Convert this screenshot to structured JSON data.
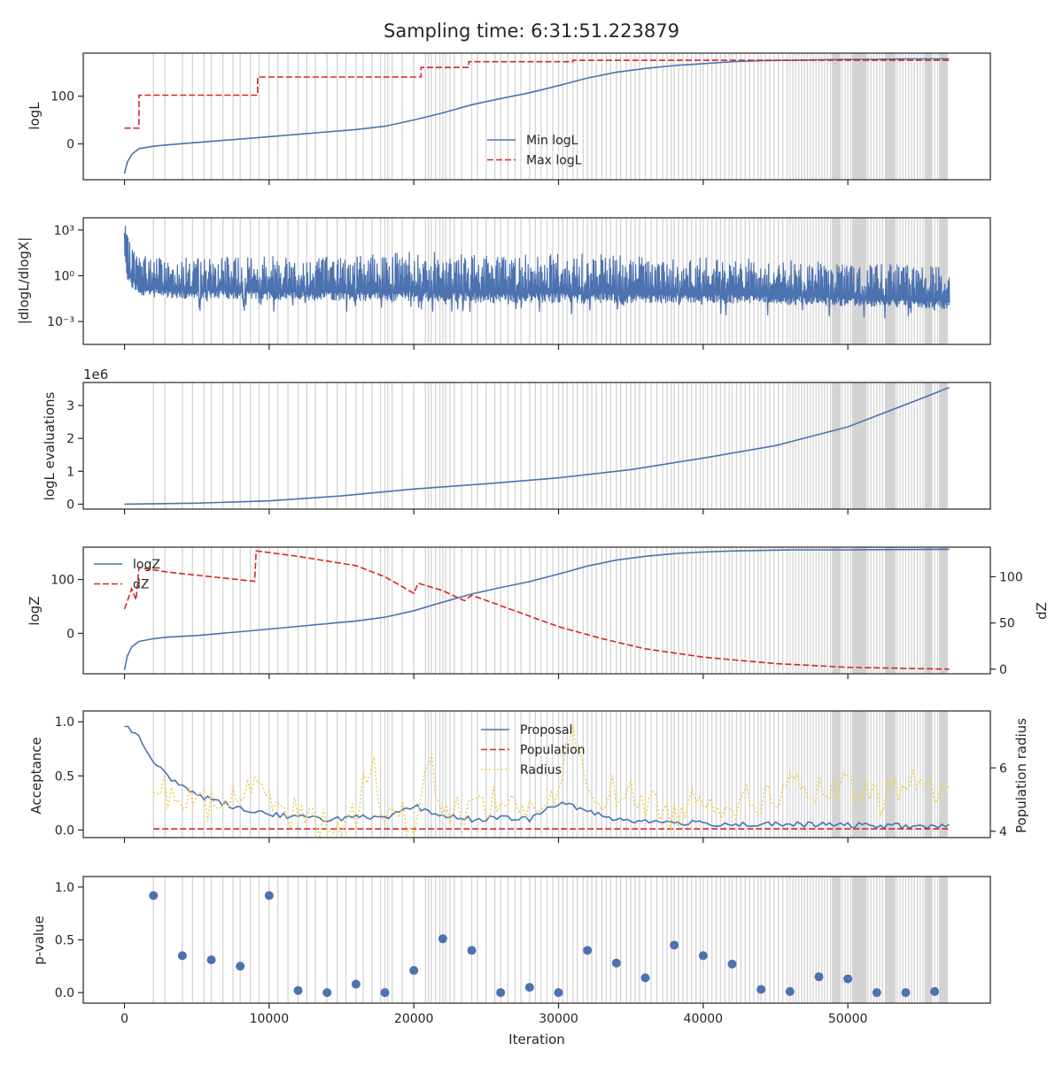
{
  "figure": {
    "title": "Sampling time: 6:31:51.223879",
    "xlabel": "Iteration",
    "xlim": [
      -2850,
      59850
    ],
    "xticks": [
      0,
      10000,
      20000,
      30000,
      40000,
      50000
    ],
    "xtick_labels": [
      "0",
      "10000",
      "20000",
      "30000",
      "40000",
      "50000"
    ]
  },
  "colors": {
    "blue": "#4c72b0",
    "red": "#d62728",
    "yellow": "#f0d050",
    "band": "#d3d3d3",
    "axis": "#262626"
  },
  "chart_data": [
    {
      "type": "line",
      "ylabel": "logL",
      "ylim": [
        -75,
        190
      ],
      "yticks": [
        0,
        100
      ],
      "ytick_labels": [
        "0",
        "100"
      ],
      "legend": "center",
      "series": [
        {
          "name": "Min logL",
          "style": "solid",
          "color": "blue",
          "x": [
            0,
            200,
            500,
            1000,
            2000,
            3000,
            5000,
            8000,
            10000,
            12000,
            14000,
            16000,
            18000,
            20000,
            22000,
            24000,
            26000,
            28000,
            30000,
            32000,
            34000,
            36000,
            38000,
            40000,
            42000,
            44000,
            46000,
            48000,
            50000,
            52000,
            54000,
            57000
          ],
          "y": [
            -62,
            -38,
            -22,
            -10,
            -5,
            -2,
            3,
            10,
            15,
            20,
            25,
            30,
            37,
            50,
            65,
            82,
            95,
            107,
            122,
            138,
            150,
            158,
            164,
            168,
            172,
            174,
            175,
            176,
            177,
            177,
            178,
            178
          ]
        },
        {
          "name": "Max logL",
          "style": "dashed",
          "color": "red",
          "step": true,
          "x": [
            0,
            800,
            1000,
            9000,
            9200,
            20000,
            20500,
            23500,
            23800,
            31000,
            57000
          ],
          "y": [
            33,
            33,
            102,
            102,
            140,
            140,
            160,
            160,
            172,
            175,
            178
          ]
        }
      ]
    },
    {
      "type": "line",
      "ylabel": "|dlogL/dlogX|",
      "yscale": "log",
      "ylim_log10": [
        -4.5,
        3.8
      ],
      "yticks_log10": [
        -3,
        0,
        3
      ],
      "ytick_labels": [
        "10⁻³",
        "10⁰",
        "10³"
      ],
      "series": [
        {
          "name": "",
          "style": "noisy",
          "color": "blue",
          "x": [
            0,
            200,
            1000,
            3000,
            10000,
            17000,
            20000,
            25000,
            30000,
            40000,
            50000,
            57000
          ],
          "upper_log10": [
            3.6,
            2.6,
            1.5,
            1.2,
            1.3,
            1.4,
            1.6,
            1.4,
            1.5,
            1.2,
            0.9,
            0.6
          ],
          "lower_log10": [
            1.0,
            -0.5,
            -1.3,
            -1.5,
            -1.6,
            -1.7,
            -1.7,
            -1.8,
            -1.8,
            -1.8,
            -2.0,
            -2.2
          ]
        }
      ]
    },
    {
      "type": "line",
      "ylabel": "logL evaluations",
      "offset_label": "1e6",
      "ylim": [
        -0.15,
        3.7
      ],
      "yticks": [
        0,
        1,
        2,
        3
      ],
      "ytick_labels": [
        "0",
        "1",
        "2",
        "3"
      ],
      "series": [
        {
          "name": "",
          "style": "solid",
          "color": "blue",
          "x": [
            0,
            5000,
            10000,
            15000,
            20000,
            25000,
            30000,
            35000,
            40000,
            45000,
            50000,
            55000,
            57000
          ],
          "y": [
            0.0,
            0.03,
            0.1,
            0.25,
            0.46,
            0.62,
            0.8,
            1.05,
            1.4,
            1.78,
            2.35,
            3.2,
            3.55
          ]
        }
      ]
    },
    {
      "type": "line",
      "ylabel": "logZ",
      "ylim": [
        -75,
        160
      ],
      "yticks": [
        0,
        100
      ],
      "ytick_labels": [
        "0",
        "100"
      ],
      "ylabel_right": "dZ",
      "ylim_right": [
        -5,
        132
      ],
      "yticks_right": [
        0,
        50,
        100
      ],
      "ytick_labels_right": [
        "0",
        "50",
        "100"
      ],
      "legend": "upper left",
      "series": [
        {
          "name": "logZ",
          "style": "solid",
          "color": "blue",
          "axis": "left",
          "x": [
            0,
            200,
            500,
            1000,
            2000,
            3000,
            5000,
            8000,
            10000,
            12000,
            14000,
            16000,
            18000,
            20000,
            22000,
            24000,
            26000,
            28000,
            30000,
            32000,
            34000,
            36000,
            38000,
            40000,
            42000,
            44000,
            46000,
            50000,
            57000
          ],
          "y": [
            -68,
            -42,
            -25,
            -15,
            -10,
            -7,
            -4,
            3,
            8,
            13,
            18,
            23,
            30,
            42,
            58,
            73,
            85,
            96,
            110,
            125,
            136,
            143,
            148,
            151,
            153,
            154,
            155,
            155,
            156
          ]
        },
        {
          "name": "dZ",
          "style": "dashed",
          "color": "red",
          "axis": "right",
          "x": [
            0,
            500,
            800,
            1000,
            3000,
            6000,
            9000,
            9100,
            12000,
            16000,
            18000,
            20000,
            20300,
            22000,
            23500,
            24000,
            27000,
            30000,
            33000,
            36000,
            40000,
            45000,
            50000,
            57000
          ],
          "y": [
            65,
            87,
            75,
            110,
            105,
            100,
            95,
            128,
            122,
            112,
            100,
            82,
            93,
            85,
            74,
            80,
            63,
            46,
            33,
            22,
            13,
            6,
            2,
            0
          ]
        }
      ]
    },
    {
      "type": "line",
      "ylabel": "Acceptance",
      "ylim": [
        -0.07,
        1.1
      ],
      "yticks": [
        0.0,
        0.5,
        1.0
      ],
      "ytick_labels": [
        "0.0",
        "0.5",
        "1.0"
      ],
      "ylabel_right": "Population radius",
      "ylim_right": [
        3.8,
        7.8
      ],
      "yticks_right": [
        4,
        6
      ],
      "ytick_labels_right": [
        "4",
        "6"
      ],
      "legend": "center top",
      "series": [
        {
          "name": "Proposal",
          "style": "solid",
          "color": "blue",
          "axis": "left",
          "x": [
            0,
            1000,
            2000,
            3000,
            4000,
            5000,
            6000,
            8000,
            10000,
            12000,
            14000,
            16000,
            18000,
            20000,
            22000,
            24000,
            26000,
            28000,
            30000,
            32000,
            34000,
            36000,
            38000,
            40000,
            44000,
            48000,
            52000,
            57000
          ],
          "y": [
            0.98,
            0.85,
            0.62,
            0.5,
            0.4,
            0.33,
            0.28,
            0.2,
            0.15,
            0.12,
            0.1,
            0.12,
            0.1,
            0.22,
            0.13,
            0.1,
            0.11,
            0.1,
            0.25,
            0.18,
            0.1,
            0.08,
            0.07,
            0.06,
            0.05,
            0.05,
            0.04,
            0.03
          ]
        },
        {
          "name": "Population",
          "style": "dashed",
          "color": "red",
          "axis": "left",
          "x": [
            2000,
            57000
          ],
          "y": [
            0.01,
            0.01
          ]
        },
        {
          "name": "Radius",
          "style": "dotted",
          "color": "yellow",
          "axis": "right",
          "x": [
            2000,
            4000,
            6000,
            8000,
            10000,
            12000,
            14000,
            16000,
            17000,
            18000,
            20000,
            21000,
            22000,
            24000,
            26000,
            28000,
            30000,
            31000,
            32000,
            34000,
            36000,
            38000,
            40000,
            42000,
            44000,
            46000,
            48000,
            50000,
            52000,
            54000,
            56000,
            57000
          ],
          "y": [
            5.5,
            5.0,
            4.8,
            5.2,
            5.3,
            4.5,
            4.2,
            4.5,
            6.3,
            4.6,
            4.3,
            6.4,
            4.5,
            4.8,
            5.0,
            4.7,
            5.0,
            7.5,
            5.0,
            5.3,
            4.9,
            4.5,
            5.2,
            4.8,
            5.0,
            5.4,
            5.2,
            5.3,
            5.0,
            5.5,
            5.4,
            5.3
          ]
        }
      ]
    },
    {
      "type": "scatter",
      "ylabel": "p-value",
      "ylim": [
        -0.1,
        1.1
      ],
      "yticks": [
        0.0,
        0.5,
        1.0
      ],
      "ytick_labels": [
        "0.0",
        "0.5",
        "1.0"
      ],
      "series": [
        {
          "name": "",
          "color": "blue",
          "x": [
            2000,
            4000,
            6000,
            8000,
            10000,
            12000,
            14000,
            16000,
            18000,
            20000,
            22000,
            24000,
            26000,
            28000,
            30000,
            32000,
            34000,
            36000,
            38000,
            40000,
            42000,
            44000,
            46000,
            48000,
            50000,
            52000,
            54000,
            56000
          ],
          "y": [
            0.92,
            0.35,
            0.31,
            0.25,
            0.92,
            0.02,
            0.0,
            0.08,
            0.0,
            0.21,
            0.51,
            0.4,
            0.0,
            0.05,
            0.0,
            0.4,
            0.28,
            0.14,
            0.45,
            0.35,
            0.27,
            0.03,
            0.01,
            0.15,
            0.13,
            0.0,
            0.0,
            0.01
          ]
        }
      ]
    }
  ],
  "vbands": {
    "x": [
      2000,
      2800,
      4000,
      4700,
      5500,
      6000,
      6800,
      7500,
      8000,
      8700,
      9300,
      10000,
      10600,
      11300,
      12000,
      12600,
      13200,
      14000,
      14700,
      15300,
      16000,
      16500,
      17100,
      17700,
      18000,
      18200,
      18500,
      19200,
      20000,
      20800,
      21000,
      21200,
      21500,
      21800,
      22000,
      22200,
      22500,
      22800,
      23300,
      24000,
      24400,
      25000,
      25600,
      26000,
      26500,
      27000,
      27400,
      28000,
      28400,
      28800,
      29200,
      29600,
      30000,
      30300,
      30600,
      31000,
      31300,
      31700,
      32000,
      32300,
      32600,
      33000,
      33300,
      33600,
      34000,
      34300,
      34700,
      35000,
      35300,
      35600,
      36000,
      36400,
      36800,
      37200,
      37500,
      37800,
      38000,
      38300,
      38600,
      38900,
      39200,
      39500,
      39800,
      40000,
      40300,
      40600,
      40900,
      41200,
      41500,
      41800,
      42000,
      42300,
      42600,
      42900,
      43200,
      43500,
      43800,
      44000,
      44300,
      44600,
      44900,
      45200,
      45500,
      45800,
      46000,
      46200,
      46400,
      46600,
      46800,
      47000,
      47200,
      47400,
      47600,
      47800,
      48000,
      48200,
      48400,
      48600,
      48800,
      49000,
      49200,
      49400,
      49600,
      49800,
      50000,
      50200,
      50400,
      50600,
      50800,
      51000,
      51200,
      51400,
      51600,
      51800,
      52000,
      52200,
      52400,
      52600,
      52800,
      53000,
      53200,
      53400,
      53600,
      53800,
      54000,
      54200,
      54400,
      54600,
      54800,
      55000,
      55200,
      55400,
      55600,
      55800,
      56000,
      56200,
      56400,
      56600,
      56800
    ],
    "spans": [
      [
        48900,
        49500
      ],
      [
        50300,
        51300
      ],
      [
        52600,
        53300
      ],
      [
        55300,
        55800
      ],
      [
        56300,
        56900
      ]
    ]
  }
}
